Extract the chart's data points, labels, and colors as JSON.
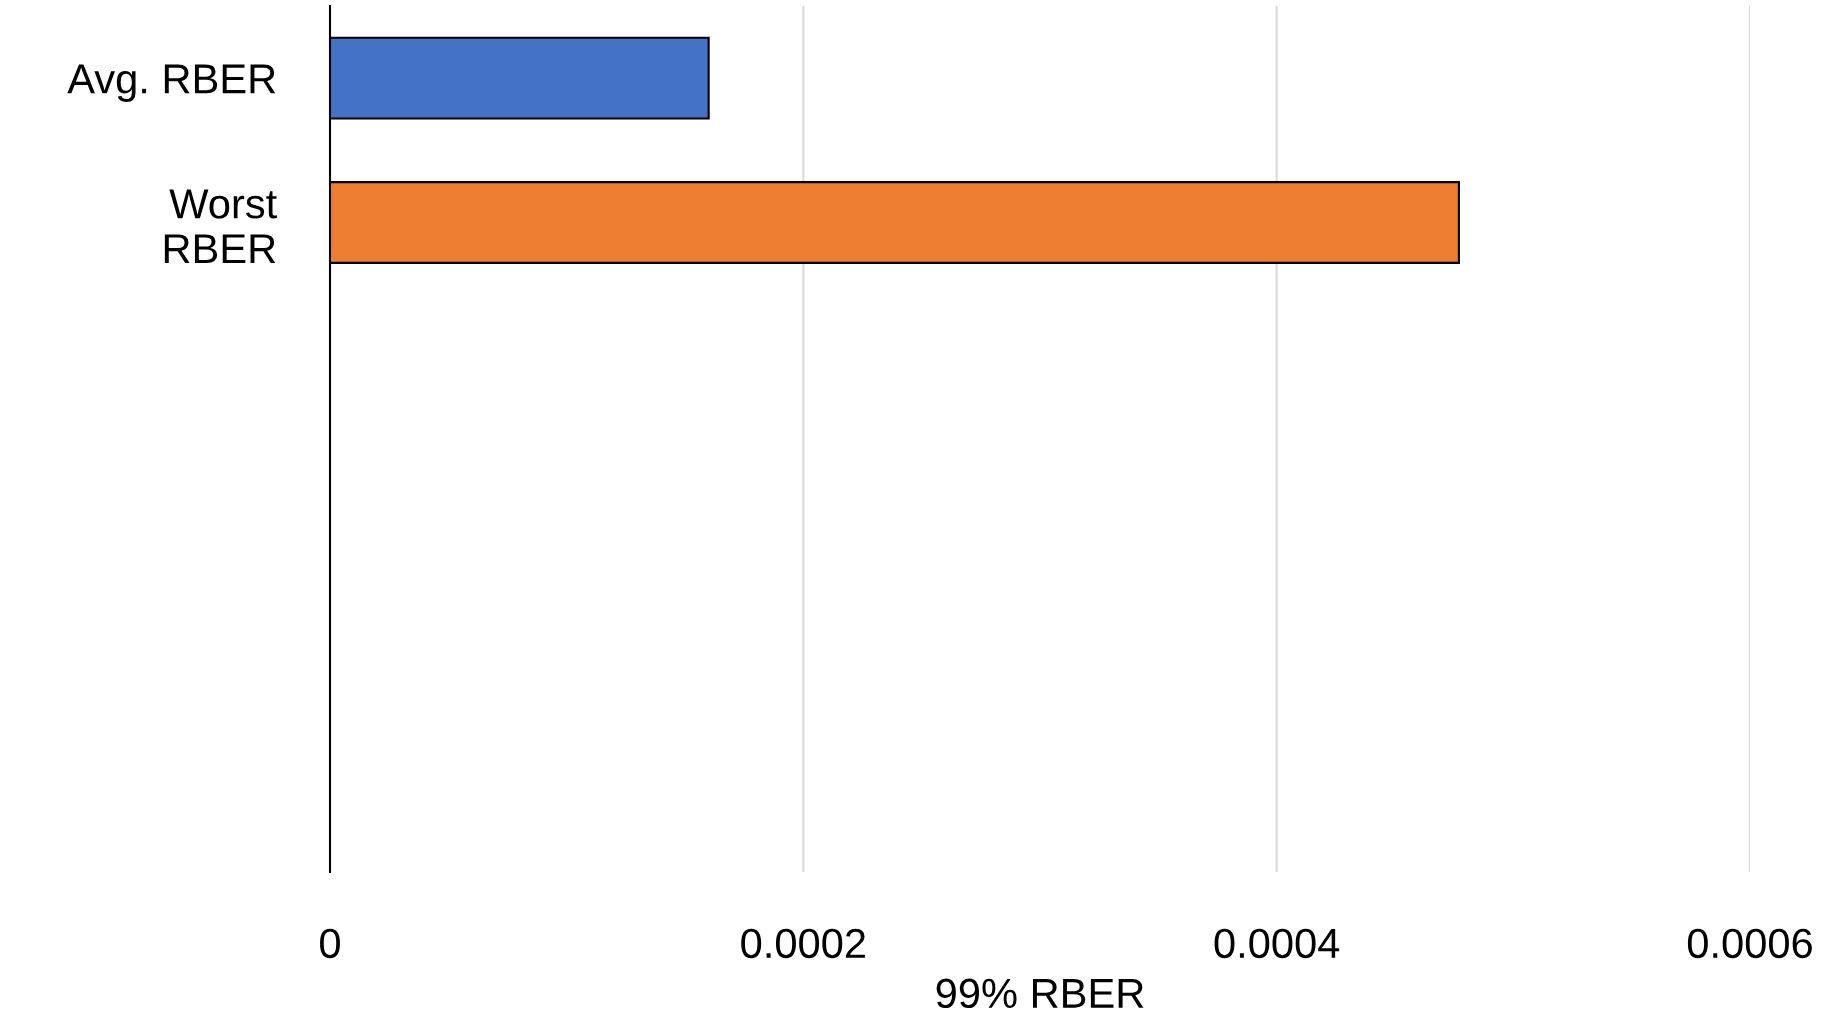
{
  "chart_data": {
    "type": "bar",
    "orientation": "horizontal",
    "xlabel": "99% RBER",
    "categories": [
      "Avg. RBER",
      "Worst\nRBER",
      null,
      null,
      null,
      null
    ],
    "values": [
      0.00016,
      0.000477,
      null,
      null,
      null,
      null
    ],
    "colors": [
      "#4472c4",
      "#ed7d31",
      null,
      null,
      null,
      null
    ],
    "xlim": [
      0,
      0.0006
    ],
    "xticks": [
      0,
      0.0002,
      0.0004,
      0.0006
    ],
    "grid": "x",
    "legend": false
  }
}
